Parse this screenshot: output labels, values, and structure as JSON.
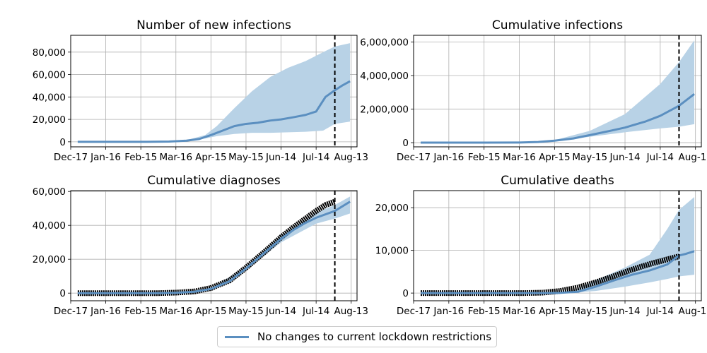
{
  "colors": {
    "series_line": "#5b8fc0",
    "band": "#b8d2e6",
    "observed": "#000000",
    "grid": "#b0b0b0",
    "vline": "#000000"
  },
  "legend": {
    "label": "No changes to current lockdown restrictions",
    "placement": "bottom-center"
  },
  "chart_data": [
    {
      "type": "line",
      "title": "Number of new infections",
      "xlabel": "",
      "ylabel": "",
      "xlim": [
        "2019-12-17",
        "2020-08-18"
      ],
      "ylim": [
        -4500,
        95000
      ],
      "x_ticks": [
        "Dec-17",
        "Jan-16",
        "Feb-15",
        "Mar-16",
        "Apr-15",
        "May-15",
        "Jun-14",
        "Jul-14",
        "Aug-13"
      ],
      "y_ticks": [
        0,
        20000,
        40000,
        60000,
        80000
      ],
      "y_tick_labels": [
        "0",
        "20,000",
        "40,000",
        "60,000",
        "80,000"
      ],
      "grid": true,
      "vline_date": "2020-07-30",
      "series": [
        {
          "name": "No changes to current lockdown restrictions",
          "x": [
            "2019-12-23",
            "2020-01-20",
            "2020-02-20",
            "2020-03-10",
            "2020-03-25",
            "2020-04-05",
            "2020-04-15",
            "2020-04-25",
            "2020-05-05",
            "2020-05-15",
            "2020-05-25",
            "2020-06-05",
            "2020-06-14",
            "2020-06-25",
            "2020-07-05",
            "2020-07-14",
            "2020-07-22",
            "2020-07-30",
            "2020-08-05",
            "2020-08-12"
          ],
          "values": [
            0,
            0,
            0,
            200,
            1000,
            2500,
            6000,
            10000,
            14000,
            16000,
            17000,
            19000,
            20000,
            22000,
            24000,
            27000,
            40000,
            46000,
            50000,
            54000
          ]
        }
      ],
      "band": {
        "x": [
          "2019-12-23",
          "2020-02-20",
          "2020-03-25",
          "2020-04-10",
          "2020-04-20",
          "2020-05-05",
          "2020-05-20",
          "2020-06-05",
          "2020-06-20",
          "2020-07-05",
          "2020-07-20",
          "2020-07-30",
          "2020-08-12"
        ],
        "lower": [
          0,
          0,
          800,
          3000,
          5000,
          7000,
          8000,
          8000,
          8500,
          9000,
          10000,
          16000,
          18000
        ],
        "upper": [
          0,
          0,
          1500,
          6000,
          14000,
          30000,
          45000,
          58000,
          66000,
          72000,
          80000,
          85000,
          88000
        ]
      }
    },
    {
      "type": "line",
      "title": "Cumulative infections",
      "xlabel": "",
      "ylabel": "",
      "xlim": [
        "2019-12-17",
        "2020-08-18"
      ],
      "ylim": [
        -250000,
        6400000
      ],
      "x_ticks": [
        "Dec-17",
        "Jan-16",
        "Feb-15",
        "Mar-16",
        "Apr-15",
        "May-15",
        "Jun-14",
        "Jul-14",
        "Aug-13"
      ],
      "y_ticks": [
        0,
        2000000,
        4000000,
        6000000
      ],
      "y_tick_labels": [
        "0",
        "2,000,000",
        "4,000,000",
        "6,000,000"
      ],
      "grid": true,
      "vline_date": "2020-07-30",
      "series": [
        {
          "name": "No changes to current lockdown restrictions",
          "x": [
            "2019-12-23",
            "2020-02-15",
            "2020-03-16",
            "2020-04-01",
            "2020-04-15",
            "2020-05-01",
            "2020-05-15",
            "2020-06-01",
            "2020-06-14",
            "2020-07-01",
            "2020-07-14",
            "2020-07-30",
            "2020-08-12"
          ],
          "values": [
            0,
            0,
            10000,
            40000,
            120000,
            250000,
            450000,
            700000,
            900000,
            1250000,
            1600000,
            2200000,
            2900000
          ]
        }
      ],
      "band": {
        "x": [
          "2019-12-23",
          "2020-02-15",
          "2020-03-16",
          "2020-04-15",
          "2020-05-15",
          "2020-06-14",
          "2020-07-14",
          "2020-07-30",
          "2020-08-12"
        ],
        "lower": [
          0,
          0,
          8000,
          100000,
          350000,
          620000,
          850000,
          950000,
          1100000
        ],
        "upper": [
          0,
          0,
          15000,
          150000,
          700000,
          1700000,
          3500000,
          4800000,
          6100000
        ]
      }
    },
    {
      "type": "line",
      "title": "Cumulative diagnoses",
      "xlabel": "",
      "ylabel": "",
      "xlim": [
        "2019-12-17",
        "2020-08-18"
      ],
      "ylim": [
        -4500,
        60500
      ],
      "x_ticks": [
        "Dec-17",
        "Jan-16",
        "Feb-15",
        "Mar-16",
        "Apr-15",
        "May-15",
        "Jun-14",
        "Jul-14",
        "Aug-13"
      ],
      "y_ticks": [
        0,
        20000,
        40000,
        60000
      ],
      "y_tick_labels": [
        "0",
        "20,000",
        "40,000",
        "60,000"
      ],
      "grid": true,
      "vline_date": "2020-07-30",
      "series": [
        {
          "name": "No changes to current lockdown restrictions",
          "x": [
            "2019-12-23",
            "2020-03-01",
            "2020-03-16",
            "2020-04-01",
            "2020-04-15",
            "2020-05-01",
            "2020-05-15",
            "2020-06-01",
            "2020-06-14",
            "2020-06-25",
            "2020-07-05",
            "2020-07-14",
            "2020-07-30",
            "2020-08-12"
          ],
          "values": [
            0,
            0,
            200,
            800,
            2500,
            7000,
            14500,
            24500,
            32000,
            37500,
            41500,
            44500,
            48500,
            54000
          ]
        }
      ],
      "band": {
        "x": [
          "2019-12-23",
          "2020-03-16",
          "2020-04-15",
          "2020-05-15",
          "2020-06-14",
          "2020-07-14",
          "2020-07-30",
          "2020-08-12"
        ],
        "lower": [
          0,
          150,
          2200,
          13500,
          30000,
          41000,
          44000,
          47000
        ],
        "upper": [
          0,
          250,
          2800,
          15500,
          34000,
          47500,
          52000,
          57000
        ]
      },
      "observed": {
        "x": [
          "2019-12-23",
          "2020-03-01",
          "2020-03-16",
          "2020-04-01",
          "2020-04-15",
          "2020-05-01",
          "2020-05-15",
          "2020-06-01",
          "2020-06-14",
          "2020-06-25",
          "2020-07-05",
          "2020-07-14",
          "2020-07-22",
          "2020-07-30"
        ],
        "values": [
          0,
          0,
          300,
          1000,
          3000,
          7500,
          15000,
          25000,
          33000,
          39000,
          44000,
          48500,
          52000,
          54000
        ]
      }
    },
    {
      "type": "line",
      "title": "Cumulative deaths",
      "xlabel": "",
      "ylabel": "",
      "xlim": [
        "2019-12-17",
        "2020-08-18"
      ],
      "ylim": [
        -1800,
        24000
      ],
      "x_ticks": [
        "Dec-17",
        "Jan-16",
        "Feb-15",
        "Mar-16",
        "Apr-15",
        "May-15",
        "Jun-14",
        "Jul-14",
        "Aug-13"
      ],
      "y_ticks": [
        0,
        10000,
        20000
      ],
      "y_tick_labels": [
        "0",
        "10,000",
        "20,000"
      ],
      "grid": true,
      "vline_date": "2020-07-30",
      "series": [
        {
          "name": "No changes to current lockdown restrictions",
          "x": [
            "2019-12-23",
            "2020-04-01",
            "2020-04-20",
            "2020-05-05",
            "2020-05-20",
            "2020-06-05",
            "2020-06-20",
            "2020-07-05",
            "2020-07-20",
            "2020-07-30",
            "2020-08-05",
            "2020-08-12"
          ],
          "values": [
            0,
            0,
            50,
            300,
            1500,
            3000,
            4300,
            5300,
            6700,
            8800,
            9200,
            9800
          ]
        }
      ],
      "band": {
        "x": [
          "2019-12-23",
          "2020-04-01",
          "2020-05-01",
          "2020-05-20",
          "2020-06-14",
          "2020-07-05",
          "2020-07-20",
          "2020-07-30",
          "2020-08-12"
        ],
        "lower": [
          0,
          0,
          100,
          500,
          1500,
          2500,
          3300,
          3900,
          4300
        ],
        "upper": [
          0,
          0,
          600,
          3000,
          6000,
          9000,
          15000,
          19500,
          22500
        ]
      },
      "observed": {
        "x": [
          "2019-12-23",
          "2020-03-20",
          "2020-04-05",
          "2020-04-20",
          "2020-05-05",
          "2020-05-20",
          "2020-06-05",
          "2020-06-20",
          "2020-07-05",
          "2020-07-20",
          "2020-07-30"
        ],
        "values": [
          0,
          0,
          100,
          500,
          1300,
          2500,
          4000,
          5500,
          6800,
          7900,
          8600
        ]
      }
    }
  ]
}
